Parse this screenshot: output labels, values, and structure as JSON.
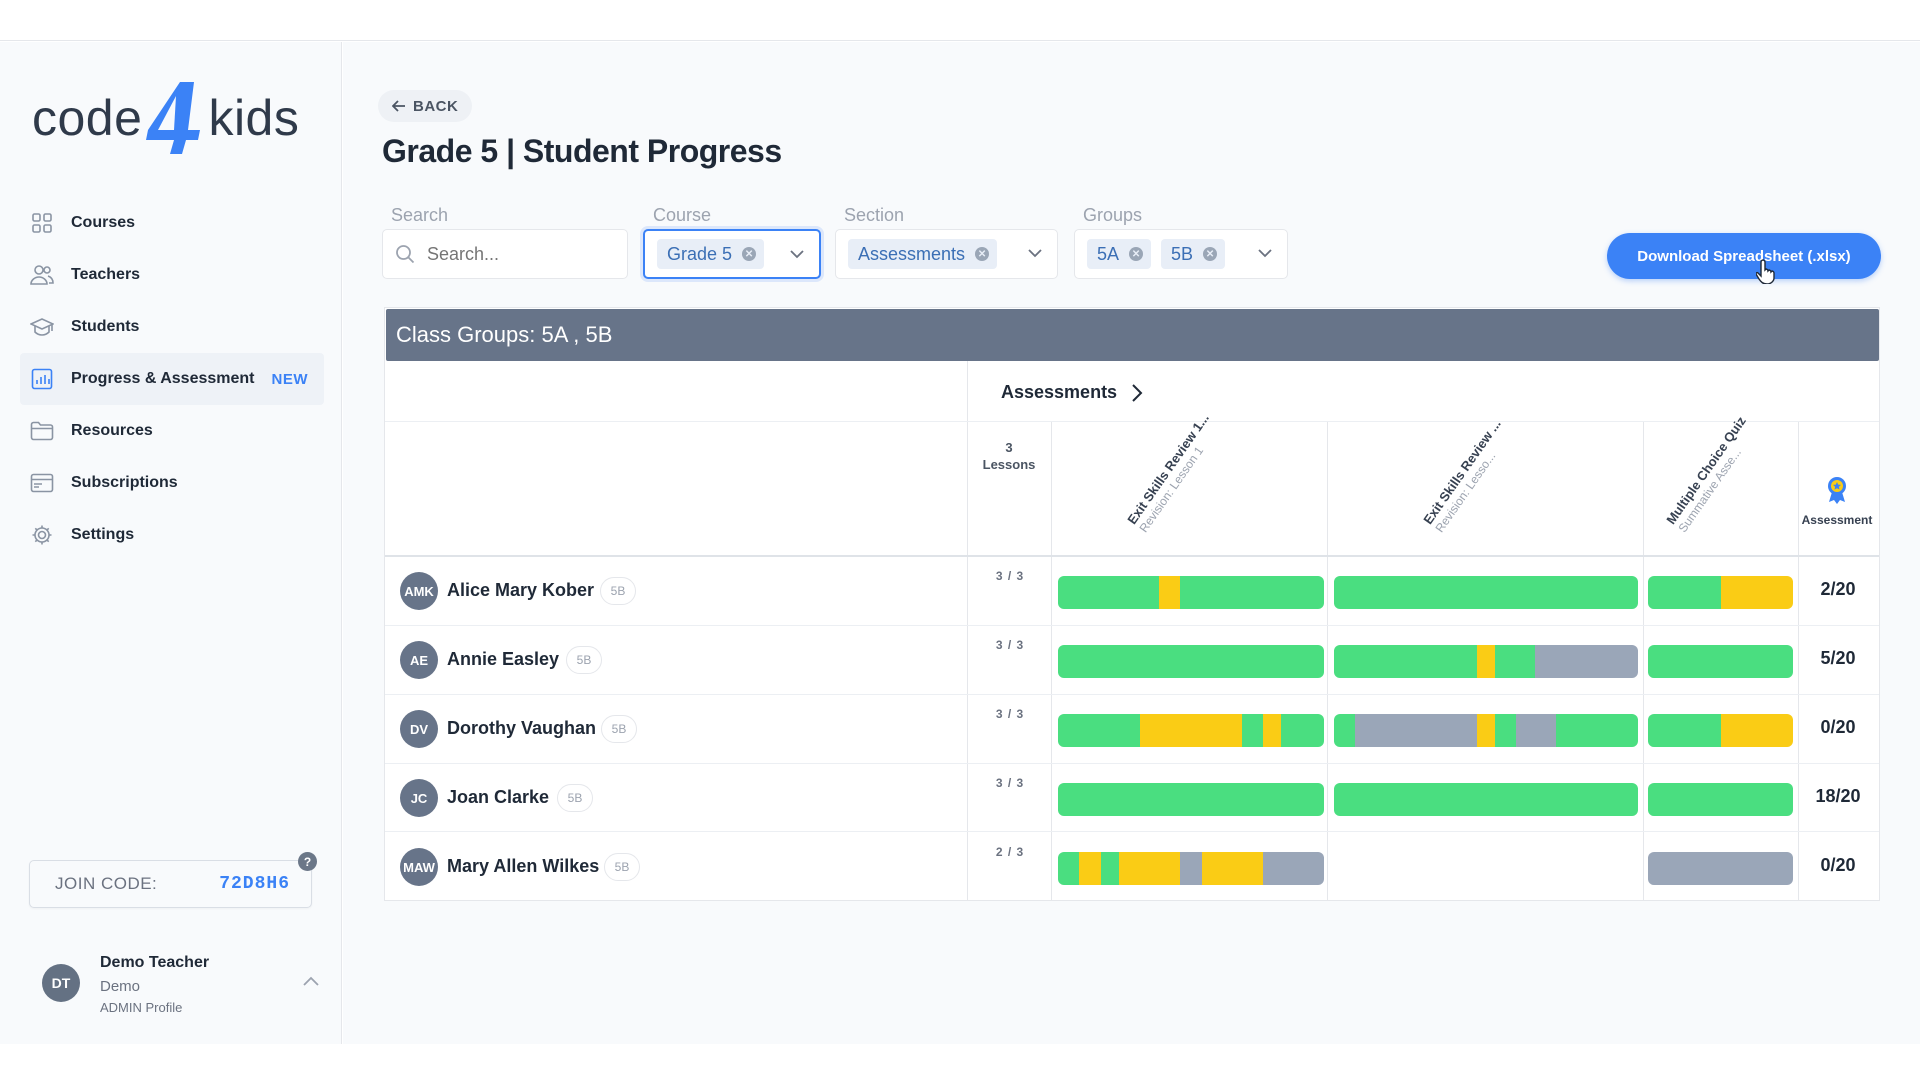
{
  "app": {
    "brand_left": "code",
    "brand_mid": "4",
    "brand_right": "kids"
  },
  "sidebar": {
    "items": [
      {
        "label": "Courses",
        "icon": "grid-icon"
      },
      {
        "label": "Teachers",
        "icon": "users-icon"
      },
      {
        "label": "Students",
        "icon": "graduation-cap-icon"
      },
      {
        "label": "Progress & Assessment",
        "icon": "bar-chart-icon",
        "badge": "NEW",
        "active": true
      },
      {
        "label": "Resources",
        "icon": "folder-icon"
      },
      {
        "label": "Subscriptions",
        "icon": "credit-card-icon"
      },
      {
        "label": "Settings",
        "icon": "gear-icon"
      }
    ],
    "join_code_label": "JOIN CODE:",
    "join_code": "72D8H6",
    "help": "?",
    "user": {
      "initials": "DT",
      "name": "Demo Teacher",
      "org": "Demo",
      "role": "ADMIN Profile"
    }
  },
  "header": {
    "back_label": "BACK",
    "title": "Grade 5 | Student Progress"
  },
  "filters": {
    "search_label": "Search",
    "search_placeholder": "Search...",
    "course_label": "Course",
    "course_value": "Grade 5",
    "section_label": "Section",
    "section_value": "Assessments",
    "groups_label": "Groups",
    "groups_values": [
      "5A",
      "5B"
    ]
  },
  "download_label": "Download Spreadsheet (.xlsx)",
  "table": {
    "panel_title": "Class Groups: 5A , 5B",
    "section_header": "Assessments",
    "lessons_count": "3",
    "lessons_label": "Lessons",
    "columns": [
      {
        "title": "Exit Skills Review 1...",
        "subtitle": "Revision: Lesson 1"
      },
      {
        "title": "Exit Skills Review ...",
        "subtitle": "Revision: Lesso..."
      },
      {
        "title": "Multiple Choice Quiz",
        "subtitle": "Summative Asse..."
      }
    ],
    "assessment_label": "Assessment",
    "colors": {
      "green": "#4ade80",
      "yellow": "#facc15",
      "gray": "#9aa6b8"
    },
    "rows": [
      {
        "initials": "AMK",
        "name": "Alice Mary Kober",
        "group": "5B",
        "progress": "3 / 3",
        "score": "2/20",
        "bars": [
          [
            [
              "green",
              0.38
            ],
            [
              "yellow",
              0.08
            ],
            [
              "green",
              0.54
            ]
          ],
          [
            [
              "green",
              1
            ]
          ],
          [
            [
              "green",
              0.5
            ],
            [
              "yellow",
              0.5
            ]
          ]
        ]
      },
      {
        "initials": "AE",
        "name": "Annie Easley",
        "group": "5B",
        "progress": "3 / 3",
        "score": "5/20",
        "bars": [
          [
            [
              "green",
              1
            ]
          ],
          [
            [
              "green",
              0.47
            ],
            [
              "yellow",
              0.06
            ],
            [
              "green",
              0.13
            ],
            [
              "gray",
              0.34
            ]
          ],
          [
            [
              "green",
              1
            ]
          ]
        ]
      },
      {
        "initials": "DV",
        "name": "Dorothy Vaughan",
        "group": "5B",
        "progress": "3 / 3",
        "score": "0/20",
        "bars": [
          [
            [
              "green",
              0.31
            ],
            [
              "yellow",
              0.38
            ],
            [
              "green",
              0.08
            ],
            [
              "yellow",
              0.07
            ],
            [
              "green",
              0.16
            ]
          ],
          [
            [
              "green",
              0.07
            ],
            [
              "gray",
              0.4
            ],
            [
              "yellow",
              0.06
            ],
            [
              "green",
              0.07
            ],
            [
              "gray",
              0.13
            ],
            [
              "green",
              0.27
            ]
          ],
          [
            [
              "green",
              0.5
            ],
            [
              "yellow",
              0.5
            ]
          ]
        ]
      },
      {
        "initials": "JC",
        "name": "Joan Clarke",
        "group": "5B",
        "progress": "3 / 3",
        "score": "18/20",
        "bars": [
          [
            [
              "green",
              1
            ]
          ],
          [
            [
              "green",
              1
            ]
          ],
          [
            [
              "green",
              1
            ]
          ]
        ]
      },
      {
        "initials": "MAW",
        "name": "Mary Allen Wilkes",
        "group": "5B",
        "progress": "2 / 3",
        "score": "0/20",
        "bars": [
          [
            [
              "green",
              0.08
            ],
            [
              "yellow",
              0.08
            ],
            [
              "green",
              0.07
            ],
            [
              "yellow",
              0.23
            ],
            [
              "gray",
              0.08
            ],
            [
              "yellow",
              0.23
            ],
            [
              "gray",
              0.23
            ]
          ],
          [],
          [
            [
              "gray",
              1
            ]
          ]
        ]
      }
    ]
  }
}
